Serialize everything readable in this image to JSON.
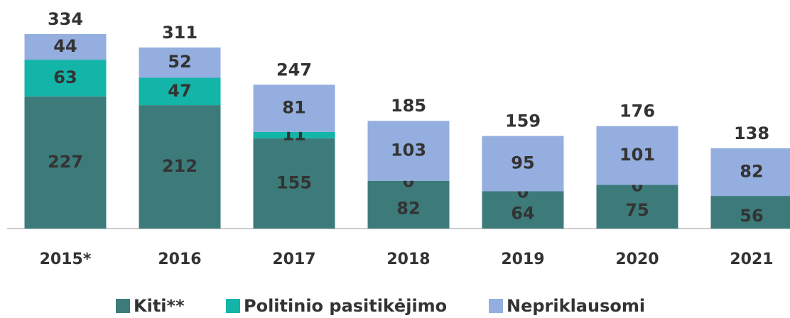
{
  "chart_data": {
    "type": "stacked_bar",
    "categories": [
      "2015*",
      "2016",
      "2017",
      "2018",
      "2019",
      "2020",
      "2021"
    ],
    "series": [
      {
        "name": "Kiti**",
        "color": "#3d7b7b",
        "values": [
          227,
          212,
          155,
          82,
          64,
          75,
          56
        ]
      },
      {
        "name": "Politinio pasitikėjimo",
        "color": "#13b5a9",
        "values": [
          63,
          47,
          11,
          0,
          0,
          0,
          null
        ]
      },
      {
        "name": "Nepriklausomi",
        "color": "#94aedf",
        "values": [
          44,
          52,
          81,
          103,
          95,
          101,
          82
        ]
      }
    ],
    "totals": [
      334,
      311,
      247,
      185,
      159,
      176,
      138
    ],
    "legend": "bottom"
  }
}
